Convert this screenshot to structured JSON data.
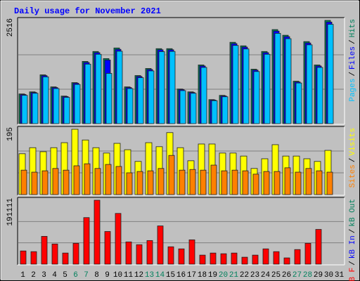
{
  "title": "Daily usage for November 2021",
  "legend_separator": "/",
  "chart_data": [
    {
      "type": "bar",
      "ylim": [
        0,
        2516
      ],
      "yticks": [
        2516
      ],
      "series": [
        {
          "name": "Pages",
          "color": "#00c0ff",
          "values": [
            690,
            740,
            1140,
            855,
            640,
            955,
            1450,
            1690,
            1224,
            1765,
            855,
            1120,
            1285,
            1755,
            1760,
            805,
            740,
            1370,
            560,
            655,
            1905,
            1820,
            1270,
            1690,
            2200,
            2070,
            990,
            1920,
            1370,
            2420,
            0
          ]
        },
        {
          "name": "Files",
          "color": "#0000ff",
          "values": [
            710,
            760,
            1170,
            880,
            660,
            985,
            1490,
            1730,
            1550,
            1810,
            880,
            1150,
            1320,
            1800,
            1800,
            830,
            760,
            1405,
            575,
            675,
            1950,
            1865,
            1305,
            1730,
            2255,
            2120,
            1015,
            1965,
            1405,
            2475,
            0
          ]
        },
        {
          "name": "Hits",
          "color": "#00805c",
          "values": [
            724,
            775,
            1189,
            896,
            672,
            1000,
            1516,
            1758,
            1585,
            1844,
            896,
            1172,
            1344,
            1827,
            1827,
            844,
            775,
            1430,
            586,
            689,
            1982,
            1896,
            1327,
            1758,
            2292,
            2154,
            1034,
            1999,
            1430,
            2516,
            0
          ]
        }
      ]
    },
    {
      "type": "bar",
      "ylim": [
        0,
        195
      ],
      "yticks": [
        195
      ],
      "series": [
        {
          "name": "Sites",
          "color": "#ff8000",
          "values": [
            73,
            67,
            71,
            78,
            73,
            86,
            92,
            78,
            90,
            84,
            65,
            69,
            71,
            78,
            117,
            73,
            75,
            73,
            88,
            71,
            73,
            71,
            61,
            69,
            69,
            80,
            67,
            78,
            71,
            67,
            0
          ]
        },
        {
          "name": "Visits",
          "color": "#ffff00",
          "values": [
            122,
            140,
            128,
            140,
            155,
            195,
            163,
            140,
            124,
            153,
            134,
            99,
            155,
            143,
            185,
            140,
            101,
            151,
            151,
            124,
            124,
            115,
            78,
            107,
            149,
            115,
            115,
            107,
            99,
            132,
            0
          ]
        }
      ]
    },
    {
      "type": "bar",
      "ylim": [
        0,
        191111
      ],
      "yticks": [
        191111
      ],
      "categories": [
        1,
        2,
        3,
        4,
        5,
        6,
        7,
        8,
        9,
        10,
        11,
        12,
        13,
        14,
        15,
        16,
        17,
        18,
        19,
        20,
        21,
        22,
        23,
        24,
        25,
        26,
        27,
        28,
        29,
        30,
        31
      ],
      "category_colors": [
        "#000000",
        "#000000",
        "#000000",
        "#000000",
        "#000000",
        "#00805c",
        "#00805c",
        "#000000",
        "#000000",
        "#000000",
        "#000000",
        "#000000",
        "#00805c",
        "#00805c",
        "#000000",
        "#000000",
        "#000000",
        "#000000",
        "#000000",
        "#00805c",
        "#00805c",
        "#000000",
        "#000000",
        "#000000",
        "#000000",
        "#000000",
        "#00805c",
        "#00805c",
        "#000000",
        "#000000",
        "#000000"
      ],
      "series": [
        {
          "name": "kB F",
          "color": "#ff0000",
          "values": [
            39469,
            37391,
            83092,
            60241,
            33237,
            62319,
            139180,
            191111,
            97633,
            151644,
            66473,
            58164,
            70628,
            114250,
            51932,
            45700,
            72705,
            27005,
            33237,
            31159,
            33237,
            20773,
            27005,
            45700,
            37391,
            18696,
            43623,
            62319,
            103864,
            0,
            0
          ]
        },
        {
          "name": "kB In",
          "color": "#0000ff"
        },
        {
          "name": "kB Out",
          "color": "#00805c"
        }
      ]
    }
  ]
}
